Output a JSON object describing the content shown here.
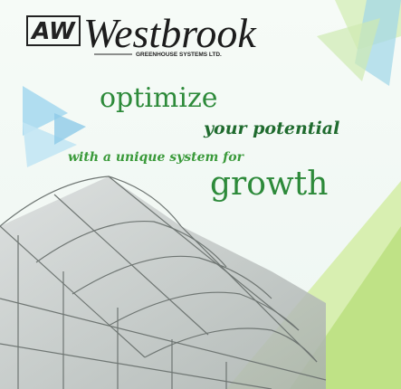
{
  "logo": {
    "mark": "AW",
    "name": "Westbrook",
    "tagline": "GREENHOUSE SYSTEMS LTD."
  },
  "headline": {
    "line1": "optimize",
    "line2": "your potential",
    "line3": "with a unique system for",
    "line4": "growth"
  }
}
